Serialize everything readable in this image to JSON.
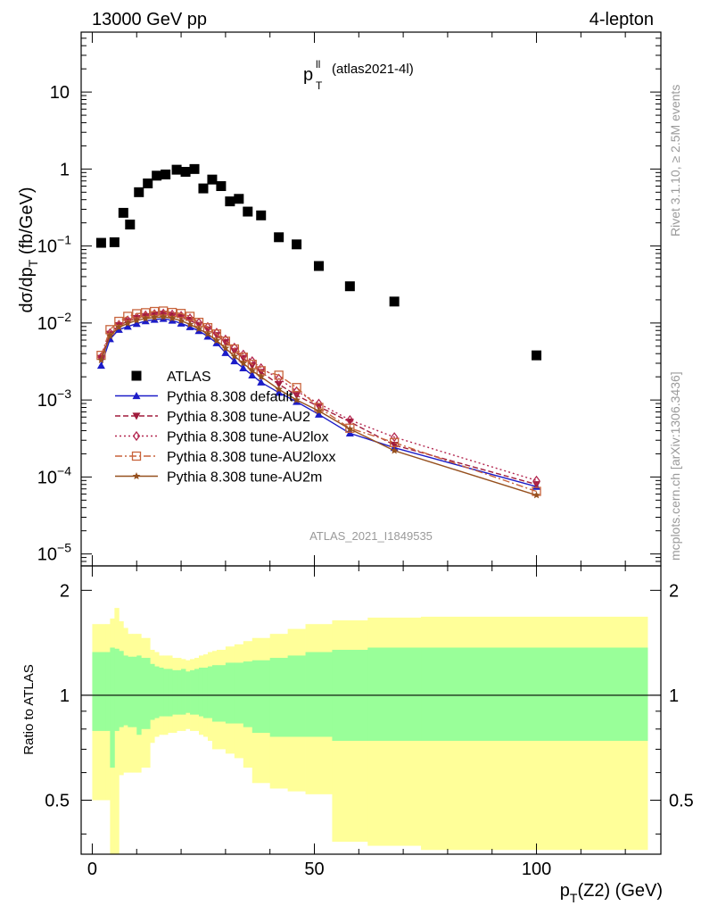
{
  "header": {
    "left": "13000 GeV pp",
    "right": "4-lepton"
  },
  "plot_title": {
    "main": "p",
    "sup": "ll",
    "sub": "T",
    "tag": "(atlas2021-4l)"
  },
  "side_texts": {
    "rivet": "Rivet 3.1.10, ≥ 2.5M events",
    "mcplots": "mcplots.cern.ch [arXiv:1306.3436]"
  },
  "watermark": "ATLAS_2021_I1849535",
  "axes": {
    "ylabel_top": {
      "pre": "dσ/dp",
      "sub": "T",
      "post": " (fb/GeV)"
    },
    "ylabel_bottom": "Ratio to ATLAS",
    "xlabel": {
      "pre": "p",
      "sub": "T",
      "post": "(Z2) (GeV)"
    },
    "x_ticks": [
      "0",
      "50",
      "100"
    ],
    "y_top_ticks": [
      {
        "base": "10",
        "exp": "−5",
        "val": 1e-05
      },
      {
        "base": "10",
        "exp": "−4",
        "val": 0.0001
      },
      {
        "base": "10",
        "exp": "−3",
        "val": 0.001
      },
      {
        "base": "10",
        "exp": "−2",
        "val": 0.01
      },
      {
        "base": "10",
        "exp": "−1",
        "val": 0.1
      },
      {
        "base": "1",
        "exp": "",
        "val": 1
      },
      {
        "base": "10",
        "exp": "",
        "val": 10
      }
    ],
    "y_bottom_ticks": [
      "0.5",
      "1",
      "2"
    ]
  },
  "legend": [
    {
      "label": "ATLAS",
      "color": "#000000",
      "marker": "square",
      "dash": ""
    },
    {
      "label": "Pythia 8.308 default",
      "color": "#1c1cc8",
      "marker": "triangle-up",
      "dash": ""
    },
    {
      "label": "Pythia 8.308 tune-AU2",
      "color": "#a01c3c",
      "marker": "triangle-down",
      "dash": "6,3"
    },
    {
      "label": "Pythia 8.308 tune-AU2lox",
      "color": "#b42850",
      "marker": "diamond-open",
      "dash": "2,3"
    },
    {
      "label": "Pythia 8.308 tune-AU2loxx",
      "color": "#c8643c",
      "marker": "square-open",
      "dash": "8,3,2,3"
    },
    {
      "label": "Pythia 8.308 tune-AU2m",
      "color": "#96501e",
      "marker": "star",
      "dash": ""
    }
  ],
  "chart_data": {
    "type": "scatter",
    "x_scale": "linear",
    "y_scale": "log",
    "xlim": [
      -2.5,
      128
    ],
    "ylim": [
      7e-06,
      60
    ],
    "ratio_ylim": [
      0.35,
      2.35
    ],
    "data": {
      "name": "ATLAS",
      "x": [
        2,
        5,
        7,
        8.5,
        10.5,
        12.5,
        14.5,
        16.5,
        19,
        21,
        23,
        25,
        27,
        29,
        31,
        33,
        35,
        38,
        42,
        46,
        51,
        58,
        68,
        100
      ],
      "y": [
        0.11,
        0.112,
        0.27,
        0.19,
        0.5,
        0.65,
        0.82,
        0.85,
        0.98,
        0.92,
        1.0,
        0.56,
        0.73,
        0.6,
        0.38,
        0.41,
        0.28,
        0.25,
        0.13,
        0.105,
        0.055,
        0.03,
        0.019,
        0.0038
      ]
    },
    "series": [
      {
        "name": "Pythia 8.308 default",
        "x": [
          2,
          4,
          6,
          8,
          10,
          12,
          14,
          16,
          18,
          20,
          22,
          24,
          26,
          28,
          30,
          32,
          34,
          36,
          38,
          42,
          46,
          51,
          58,
          68,
          100
        ],
        "y": [
          0.0028,
          0.0062,
          0.0082,
          0.009,
          0.0098,
          0.0106,
          0.0111,
          0.0114,
          0.0108,
          0.0099,
          0.0089,
          0.0079,
          0.0067,
          0.0055,
          0.0041,
          0.0032,
          0.0026,
          0.0021,
          0.0017,
          0.00125,
          0.00095,
          0.00065,
          0.00037,
          0.00024,
          7.5e-05
        ]
      },
      {
        "name": "Pythia 8.308 tune-AU2",
        "x": [
          2,
          4,
          6,
          8,
          10,
          12,
          14,
          16,
          18,
          20,
          22,
          24,
          26,
          28,
          30,
          32,
          34,
          36,
          38,
          42,
          46,
          51,
          58,
          68,
          100
        ],
        "y": [
          0.0035,
          0.0072,
          0.0093,
          0.0105,
          0.0115,
          0.0122,
          0.0128,
          0.0131,
          0.0125,
          0.0119,
          0.0109,
          0.0094,
          0.0082,
          0.0069,
          0.0056,
          0.0043,
          0.0035,
          0.0028,
          0.0023,
          0.0016,
          0.00115,
          0.00082,
          0.00052,
          0.00026,
          8e-05
        ]
      },
      {
        "name": "Pythia 8.308 tune-AU2lox",
        "x": [
          2,
          4,
          6,
          8,
          10,
          12,
          14,
          16,
          18,
          20,
          22,
          24,
          26,
          28,
          30,
          32,
          34,
          36,
          38,
          42,
          46,
          51,
          58,
          68,
          100
        ],
        "y": [
          0.0036,
          0.0074,
          0.0095,
          0.0108,
          0.0118,
          0.0126,
          0.0131,
          0.0133,
          0.0129,
          0.0124,
          0.0115,
          0.0101,
          0.0089,
          0.0075,
          0.0061,
          0.0048,
          0.0039,
          0.0032,
          0.0026,
          0.0019,
          0.0013,
          0.0009,
          0.00055,
          0.00033,
          9e-05
        ]
      },
      {
        "name": "Pythia 8.308 tune-AU2loxx",
        "x": [
          2,
          4,
          6,
          8,
          10,
          12,
          14,
          16,
          18,
          20,
          22,
          24,
          26,
          28,
          30,
          32,
          34,
          36,
          38,
          42,
          46,
          51,
          58,
          68,
          100
        ],
        "y": [
          0.0038,
          0.0082,
          0.0105,
          0.0122,
          0.0132,
          0.0136,
          0.0141,
          0.0143,
          0.0137,
          0.0133,
          0.0122,
          0.0102,
          0.0087,
          0.0072,
          0.0058,
          0.0046,
          0.0036,
          0.0029,
          0.0024,
          0.0021,
          0.00145,
          0.0008,
          0.00043,
          0.00028,
          6.5e-05
        ]
      },
      {
        "name": "Pythia 8.308 tune-AU2m",
        "x": [
          2,
          4,
          6,
          8,
          10,
          12,
          14,
          16,
          18,
          20,
          22,
          24,
          26,
          28,
          30,
          32,
          34,
          36,
          38,
          42,
          46,
          51,
          58,
          68,
          100
        ],
        "y": [
          0.0033,
          0.0068,
          0.0088,
          0.0099,
          0.0108,
          0.0114,
          0.0118,
          0.012,
          0.0115,
          0.0107,
          0.0096,
          0.0084,
          0.0072,
          0.0059,
          0.0047,
          0.0037,
          0.003,
          0.0024,
          0.002,
          0.00138,
          0.001,
          0.00072,
          0.00042,
          0.00022,
          5.8e-05
        ]
      }
    ],
    "ratio_bands": {
      "edges": [
        0,
        3,
        4,
        5,
        6,
        7,
        8,
        9,
        10,
        11,
        13,
        14,
        15,
        16,
        17,
        18,
        19,
        20,
        21,
        22,
        23,
        24,
        25,
        26,
        27,
        28,
        30,
        32,
        34,
        36,
        40,
        44,
        48,
        54,
        62,
        74,
        125
      ],
      "inner_low": [
        0.79,
        0.79,
        0.62,
        0.79,
        0.81,
        0.82,
        0.81,
        0.81,
        0.77,
        0.8,
        0.85,
        0.86,
        0.87,
        0.87,
        0.87,
        0.88,
        0.88,
        0.88,
        0.89,
        0.88,
        0.88,
        0.87,
        0.86,
        0.86,
        0.84,
        0.84,
        0.83,
        0.83,
        0.81,
        0.78,
        0.76,
        0.76,
        0.76,
        0.74,
        0.74,
        0.74
      ],
      "inner_high": [
        1.33,
        1.33,
        1.37,
        1.36,
        1.34,
        1.3,
        1.29,
        1.29,
        1.3,
        1.28,
        1.23,
        1.21,
        1.2,
        1.19,
        1.19,
        1.18,
        1.18,
        1.19,
        1.17,
        1.18,
        1.19,
        1.2,
        1.2,
        1.21,
        1.22,
        1.22,
        1.24,
        1.24,
        1.25,
        1.26,
        1.28,
        1.3,
        1.33,
        1.35,
        1.37,
        1.37
      ],
      "outer_low": [
        0.5,
        0.5,
        0.35,
        0.35,
        0.59,
        0.6,
        0.6,
        0.6,
        0.6,
        0.62,
        0.73,
        0.76,
        0.77,
        0.77,
        0.78,
        0.78,
        0.79,
        0.79,
        0.8,
        0.79,
        0.79,
        0.77,
        0.76,
        0.74,
        0.7,
        0.7,
        0.68,
        0.66,
        0.62,
        0.56,
        0.54,
        0.53,
        0.52,
        0.38,
        0.37,
        0.36
      ],
      "outer_high": [
        1.6,
        1.6,
        1.66,
        1.78,
        1.63,
        1.56,
        1.5,
        1.5,
        1.5,
        1.46,
        1.35,
        1.33,
        1.3,
        1.3,
        1.3,
        1.28,
        1.28,
        1.27,
        1.26,
        1.27,
        1.28,
        1.3,
        1.31,
        1.33,
        1.34,
        1.35,
        1.38,
        1.4,
        1.43,
        1.46,
        1.5,
        1.55,
        1.6,
        1.64,
        1.67,
        1.68
      ],
      "inner_color": "#99ff99",
      "outer_color": "#ffff99"
    }
  }
}
